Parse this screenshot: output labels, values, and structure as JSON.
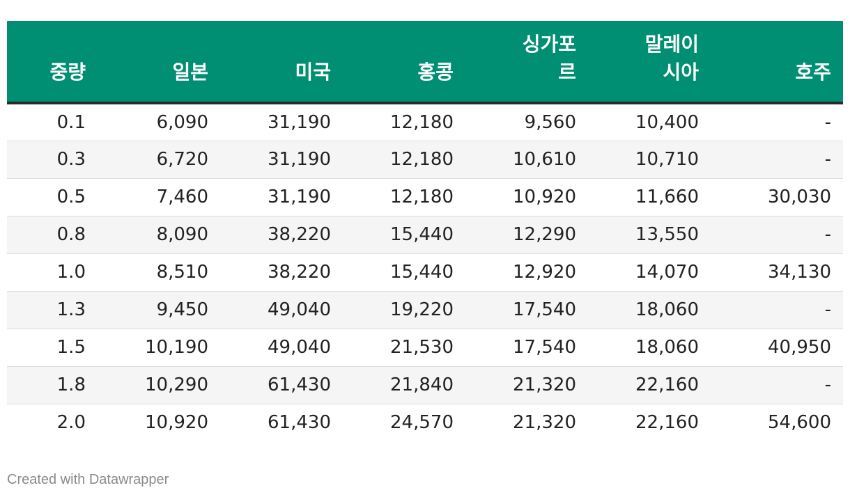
{
  "chart_data": {
    "type": "table",
    "columns": [
      "중량",
      "일본",
      "미국",
      "홍콩",
      "싱가포\n르",
      "말레이\n시아",
      "호주"
    ],
    "rows": [
      [
        "0.1",
        "6,090",
        "31,190",
        "12,180",
        "9,560",
        "10,400",
        "-"
      ],
      [
        "0.3",
        "6,720",
        "31,190",
        "12,180",
        "10,610",
        "10,710",
        "-"
      ],
      [
        "0.5",
        "7,460",
        "31,190",
        "12,180",
        "10,920",
        "11,660",
        "30,030"
      ],
      [
        "0.8",
        "8,090",
        "38,220",
        "15,440",
        "12,290",
        "13,550",
        "-"
      ],
      [
        "1.0",
        "8,510",
        "38,220",
        "15,440",
        "12,920",
        "14,070",
        "34,130"
      ],
      [
        "1.3",
        "9,450",
        "49,040",
        "19,220",
        "17,540",
        "18,060",
        "-"
      ],
      [
        "1.5",
        "10,190",
        "49,040",
        "21,530",
        "17,540",
        "18,060",
        "40,950"
      ],
      [
        "1.8",
        "10,290",
        "61,430",
        "21,840",
        "21,320",
        "22,160",
        "-"
      ],
      [
        "2.0",
        "10,920",
        "61,430",
        "24,570",
        "21,320",
        "22,160",
        "54,600"
      ]
    ]
  },
  "footer": {
    "credit": "Created with Datawrapper"
  },
  "colors": {
    "header_bg": "#008f73",
    "header_text": "#ffffff",
    "row_alt": "#f5f5f5"
  }
}
